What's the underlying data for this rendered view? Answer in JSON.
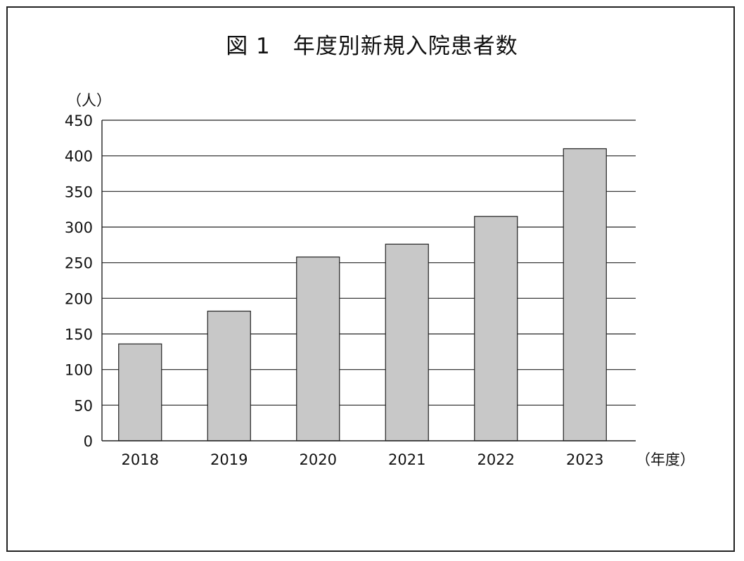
{
  "chart_data": {
    "type": "bar",
    "title": "図 1　年度別新規入院患者数",
    "xlabel": "（年度）",
    "ylabel": "（人）",
    "categories": [
      "2018",
      "2019",
      "2020",
      "2021",
      "2022",
      "2023"
    ],
    "values": [
      136,
      182,
      258,
      276,
      315,
      410
    ],
    "ylim": [
      0,
      450
    ],
    "yticks": [
      0,
      50,
      100,
      150,
      200,
      250,
      300,
      350,
      400,
      450
    ],
    "grid": true,
    "legend": "none",
    "colors": {
      "bar_fill": "#c8c8c8",
      "bar_stroke": "#222222",
      "grid": "#222222"
    }
  }
}
